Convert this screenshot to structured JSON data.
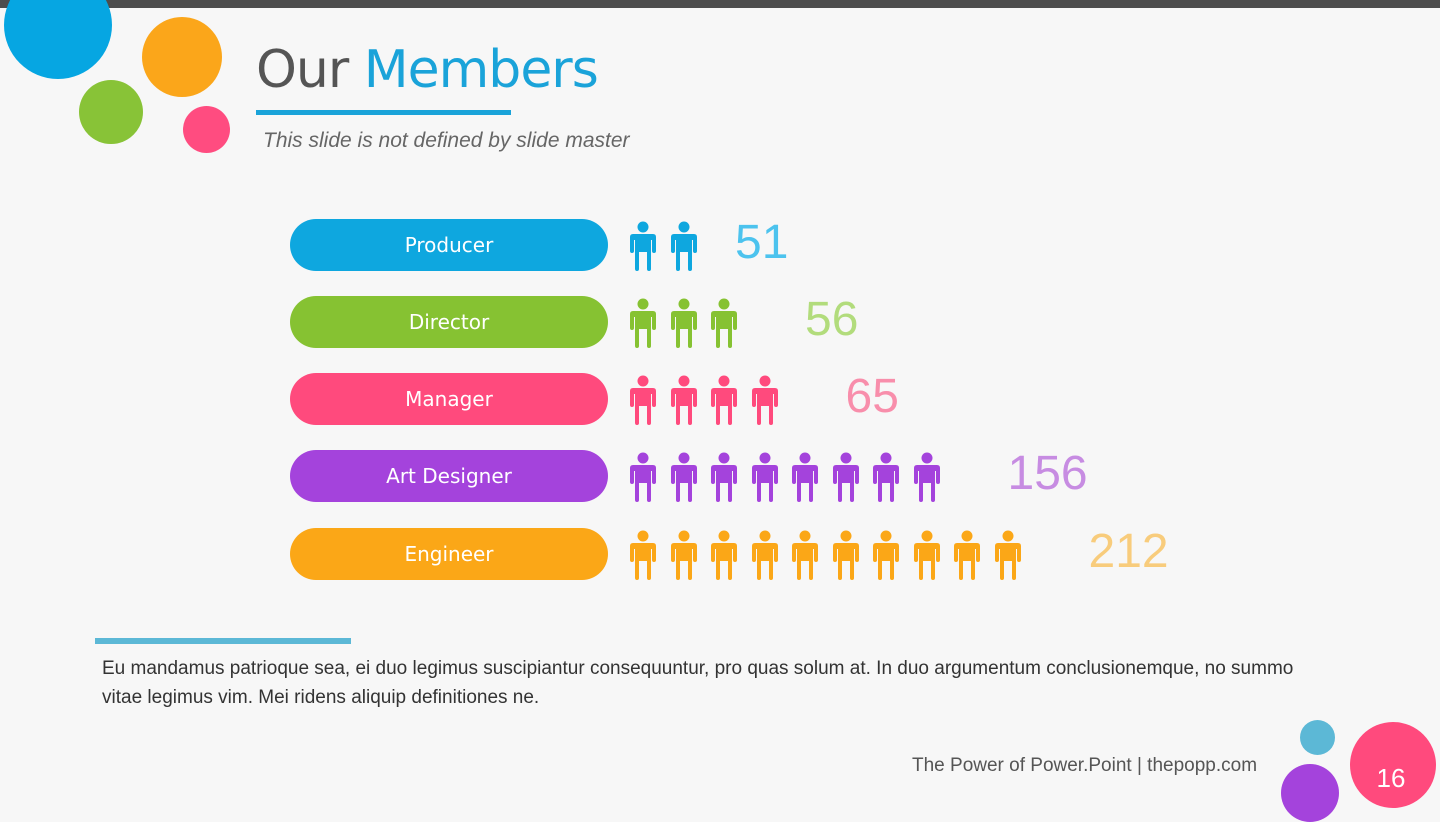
{
  "slide": {
    "title_part1": "Our",
    "title_part2": "Members",
    "subtitle": "This slide is not defined by slide master",
    "body": "Eu mandamus patrioque sea, ei duo legimus suscipiantur consequuntur, pro quas solum at. In duo argumentum conclusionemque, no summo vitae legimus vim. Mei ridens aliquip definitiones ne.",
    "footer": "The Power of Power.Point | thepopp.com",
    "page_number": "16"
  },
  "colors": {
    "title_accent": "#1aa3d9",
    "topbar": "#4d4d4d"
  },
  "chart_data": {
    "type": "bar",
    "categories": [
      "Producer",
      "Director",
      "Manager",
      "Art Designer",
      "Engineer"
    ],
    "values": [
      51,
      56,
      65,
      156,
      212
    ],
    "icon_counts": [
      2,
      3,
      4,
      8,
      10
    ],
    "bar_colors": [
      "#0ea7df",
      "#86c232",
      "#ff4a7d",
      "#a443dc",
      "#fba717"
    ],
    "value_colors": [
      "#4cc3ee",
      "#b2dc7c",
      "#f88eab",
      "#c78ce2",
      "#f8cc7c"
    ],
    "icon": "person-icon"
  }
}
